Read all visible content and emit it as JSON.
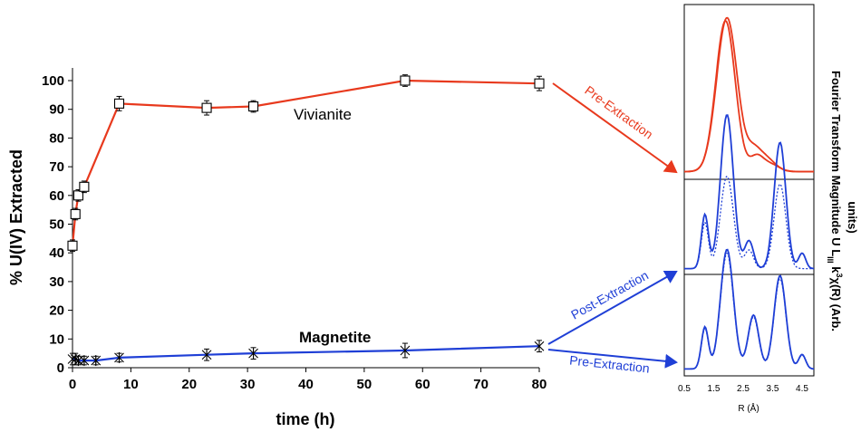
{
  "chart_data": [
    {
      "type": "line",
      "xlabel": "time (h)",
      "ylabel": "% U(IV) Extracted",
      "xlim": [
        0,
        80
      ],
      "ylim": [
        0,
        100
      ],
      "xticks": [
        "0",
        "10",
        "20",
        "30",
        "40",
        "50",
        "60",
        "70",
        "80"
      ],
      "yticks": [
        "0",
        "10",
        "20",
        "30",
        "40",
        "50",
        "60",
        "70",
        "80",
        "90",
        "100"
      ],
      "grid": false,
      "series": [
        {
          "name": "Vivianite",
          "color": "#e8391d",
          "marker": "open-square",
          "x": [
            0,
            0.5,
            1,
            2,
            8,
            23,
            31,
            57,
            80
          ],
          "y": [
            42.5,
            53.5,
            60,
            63,
            92,
            90.5,
            91,
            100,
            99
          ],
          "err": [
            2,
            2,
            2,
            2,
            2.5,
            2.5,
            2,
            2,
            2.5
          ]
        },
        {
          "name": "Magnetite",
          "color": "#1f3fd6",
          "marker": "star",
          "x": [
            0,
            0.5,
            1,
            2,
            4,
            8,
            23,
            31,
            57,
            80
          ],
          "y": [
            3,
            3,
            2.5,
            2.5,
            2.5,
            3.5,
            4.5,
            5,
            6,
            7.5
          ],
          "err": [
            2,
            2,
            1.5,
            1.5,
            1.5,
            1.5,
            2,
            2,
            2.5,
            2
          ]
        }
      ]
    },
    {
      "type": "line",
      "xlabel": "R (Å)",
      "ylabel": "Fourier Transform Magnitude U L_III k³χ(R) (Arb. units)",
      "xlim": [
        0.5,
        4.9
      ],
      "xticks": [
        "0.5",
        "1.5",
        "2.5",
        "3.5",
        "4.5"
      ],
      "panels": [
        {
          "name": "Vivianite Pre-Extraction",
          "color": "#e8391d"
        },
        {
          "name": "Magnetite Post-Extraction",
          "color": "#1f3fd6"
        },
        {
          "name": "Magnetite Pre-Extraction",
          "color": "#1f3fd6"
        }
      ]
    }
  ],
  "annotations": {
    "vivianite_pre": "Pre-Extraction",
    "magnetite_post": "Post-Extraction",
    "magnetite_pre": "Pre-Extraction"
  },
  "ft_axis_title": {
    "prefix": "Fourier Transform Magnitude U L",
    "subscript": "III",
    "middle": " k",
    "superscript": "3",
    "suffix": "χ(R) (Arb.",
    "line2": "units)"
  }
}
